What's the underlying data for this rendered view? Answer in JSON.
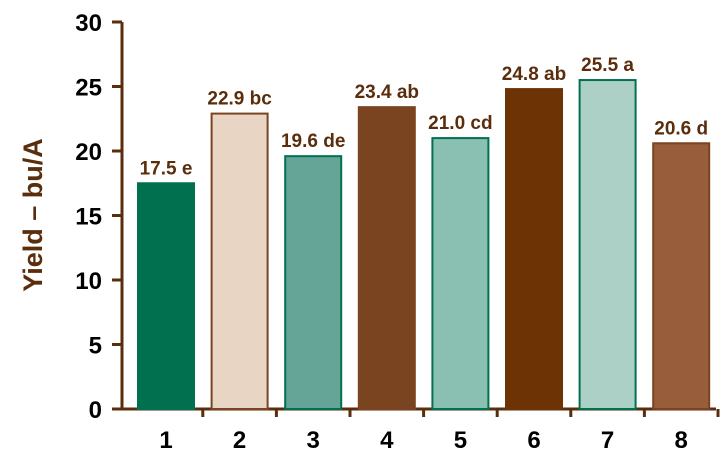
{
  "chart_data": {
    "type": "bar",
    "title": "",
    "xlabel": "",
    "ylabel": "Yield – bu/A",
    "categories": [
      "1",
      "2",
      "3",
      "4",
      "5",
      "6",
      "7",
      "8"
    ],
    "values": [
      17.5,
      22.9,
      19.6,
      23.4,
      21.0,
      24.8,
      25.5,
      20.6
    ],
    "data_labels": [
      "17.5 e",
      "22.9 bc",
      "19.6 de",
      "23.4 ab",
      "21.0 cd",
      "24.8 ab",
      "25.5 a",
      "20.6 d"
    ],
    "bar_colors": [
      "#00704f",
      "#e8d5c4",
      "#64a597",
      "#7b4420",
      "#8ac0b1",
      "#6e3305",
      "#acd0c5",
      "#985d3a"
    ],
    "bar_borders": [
      "#00704f",
      "#7b4420",
      "#00704f",
      "#7b4420",
      "#00704f",
      "#6e3305",
      "#00704f",
      "#7b4420"
    ],
    "ylim": [
      0,
      30
    ],
    "yticks": [
      0,
      5,
      10,
      15,
      20,
      25,
      30
    ],
    "grid": false,
    "legend": "none",
    "axis_color": "#5a2d0c",
    "text_color": "#5a2d0c",
    "tick_label_color": "#000000"
  }
}
